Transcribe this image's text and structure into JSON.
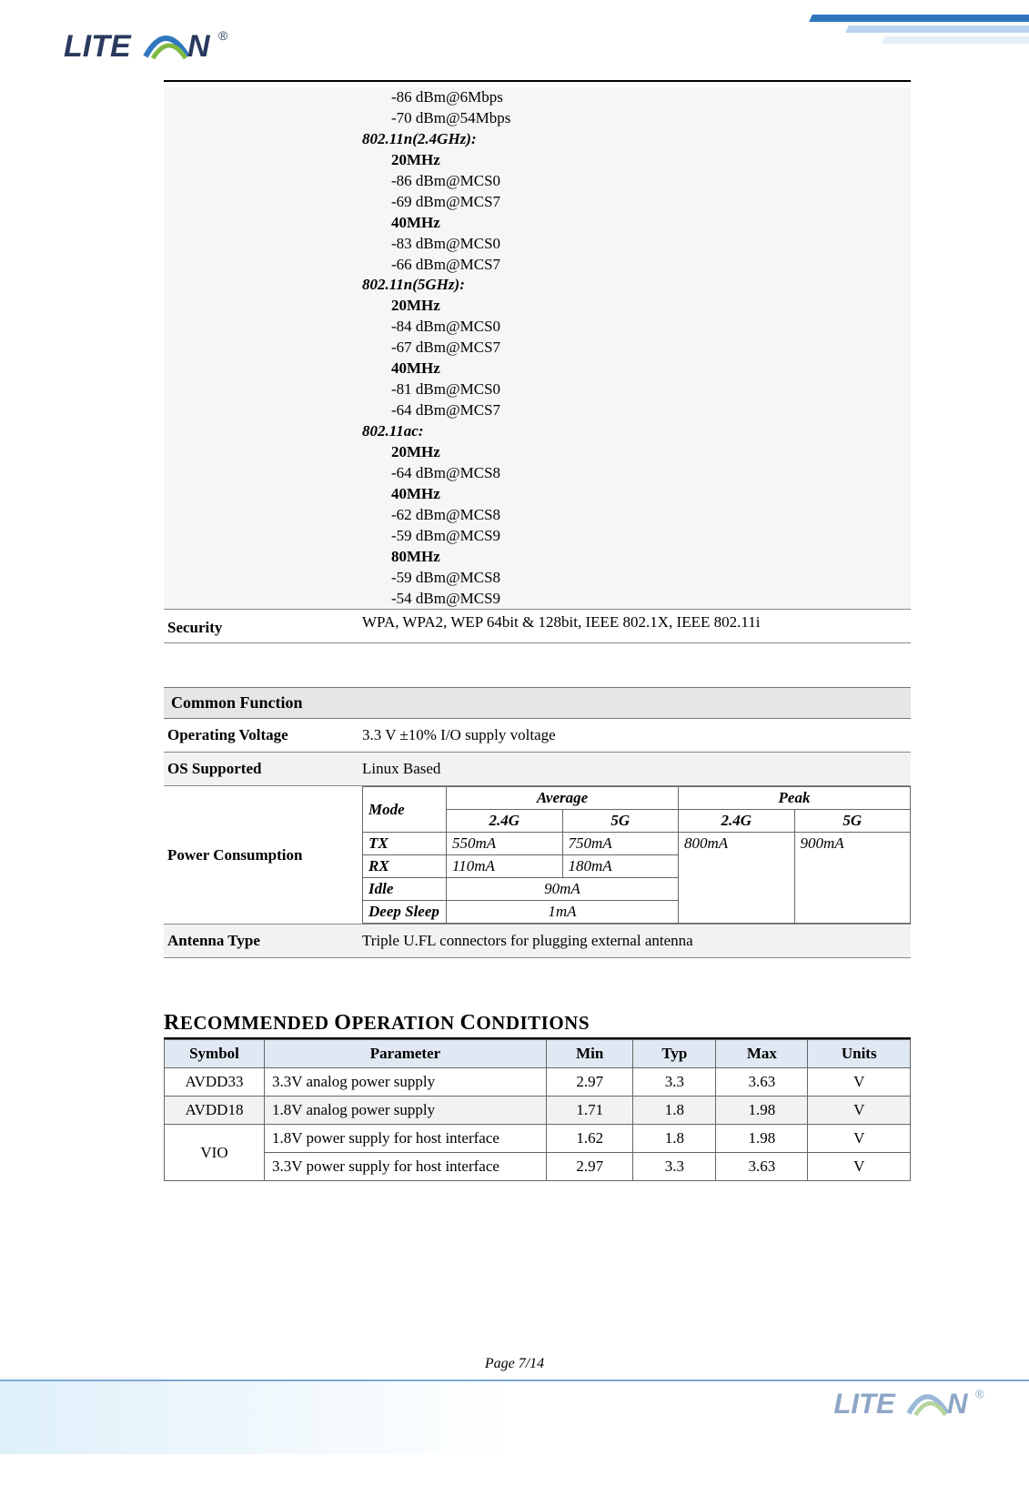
{
  "brand": {
    "name": "LITEON",
    "logo_text_color": "#2a3a5e",
    "logo_arc_color_blue": "#2f77be",
    "logo_arc_color_green": "#7fb942",
    "header_stripe_colors": [
      "#2d76bd",
      "#b9d4ec",
      "#e3eef8"
    ],
    "footer_gradient_from": "#dff0fa",
    "footer_line_color": "#7da9d4"
  },
  "sensitivity": {
    "top_lines": [
      "-86 dBm@6Mbps",
      "-70 dBm@54Mbps"
    ],
    "groups": [
      {
        "heading": "802.11n(2.4GHz):",
        "bands": [
          {
            "bw": "20MHz",
            "lines": [
              "-86 dBm@MCS0",
              "-69 dBm@MCS7"
            ]
          },
          {
            "bw": "40MHz",
            "lines": [
              "-83 dBm@MCS0",
              "-66 dBm@MCS7"
            ]
          }
        ]
      },
      {
        "heading": "802.11n(5GHz):",
        "bands": [
          {
            "bw": "20MHz",
            "lines": [
              "-84 dBm@MCS0",
              "-67 dBm@MCS7"
            ]
          },
          {
            "bw": "40MHz",
            "lines": [
              "-81 dBm@MCS0",
              "-64 dBm@MCS7"
            ]
          }
        ]
      },
      {
        "heading": "802.11ac:",
        "bands": [
          {
            "bw": "20MHz",
            "lines": [
              "-64 dBm@MCS8"
            ]
          },
          {
            "bw": "40MHz",
            "lines": [
              "-62 dBm@MCS8",
              "-59 dBm@MCS9"
            ]
          },
          {
            "bw": "80MHz",
            "lines": [
              "-59 dBm@MCS8",
              "-54 dBm@MCS9"
            ]
          }
        ]
      }
    ]
  },
  "security": {
    "label": "Security",
    "value": "WPA, WPA2, WEP 64bit & 128bit, IEEE 802.1X, IEEE 802.11i"
  },
  "common_function": {
    "title": "Common Function",
    "operating_voltage": {
      "label": "Operating Voltage",
      "value": "3.3 V ±10% I/O supply voltage"
    },
    "os_supported": {
      "label": "OS Supported",
      "value": "Linux Based"
    },
    "antenna_type": {
      "label": "Antenna Type",
      "value": "Triple U.FL connectors for plugging external antenna"
    },
    "power_consumption": {
      "label": "Power Consumption",
      "headers": {
        "mode": "Mode",
        "average": "Average",
        "peak": "Peak",
        "g24": "2.4G",
        "g5": "5G"
      },
      "tx": {
        "label": "TX",
        "avg_24g": "550mA",
        "avg_5g": "750mA"
      },
      "rx": {
        "label": "RX",
        "avg_24g": "110mA",
        "avg_5g": "180mA"
      },
      "idle": {
        "label": "Idle",
        "avg": "90mA"
      },
      "deep_sleep": {
        "label": "Deep Sleep",
        "avg": "1mA"
      },
      "peak_24g": "800mA",
      "peak_5g": "900mA"
    }
  },
  "roc": {
    "title": "Recommended Operation Conditions",
    "title_display": "RECOMMENDED OPERATION CONDITIONS",
    "headers": {
      "symbol": "Symbol",
      "parameter": "Parameter",
      "min": "Min",
      "typ": "Typ",
      "max": "Max",
      "units": "Units"
    },
    "header_bg": "#e0e9f3",
    "rows": [
      {
        "symbol": "AVDD33",
        "param": "3.3V analog power supply",
        "min": "2.97",
        "typ": "3.3",
        "max": "3.63",
        "units": "V",
        "shaded": false
      },
      {
        "symbol": "AVDD18",
        "param": "1.8V analog power supply",
        "min": "1.71",
        "typ": "1.8",
        "max": "1.98",
        "units": "V",
        "shaded": true
      },
      {
        "symbol": "VIO",
        "param": "1.8V power supply for host interface",
        "min": "1.62",
        "typ": "1.8",
        "max": "1.98",
        "units": "V",
        "shaded": false,
        "rowspan_symbol": 2
      },
      {
        "symbol": "",
        "param": "3.3V power supply for host interface",
        "min": "2.97",
        "typ": "3.3",
        "max": "3.63",
        "units": "V",
        "shaded": false
      }
    ]
  },
  "page_footer": "Page 7/14"
}
